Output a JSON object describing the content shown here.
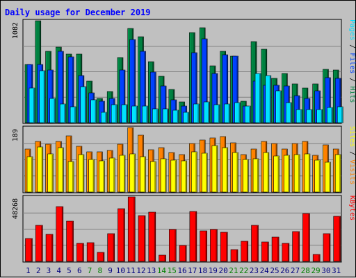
{
  "chart_data": {
    "type": "bar",
    "title": "Daily usage for December 2019",
    "categories": [
      "1",
      "2",
      "3",
      "4",
      "5",
      "6",
      "7",
      "8",
      "9",
      "10",
      "11",
      "12",
      "13",
      "14",
      "15",
      "16",
      "17",
      "18",
      "19",
      "20",
      "21",
      "22",
      "23",
      "24",
      "25",
      "26",
      "27",
      "28",
      "29",
      "30",
      "31"
    ],
    "weekend_days": [
      "7",
      "8",
      "14",
      "15",
      "21",
      "22",
      "28",
      "29"
    ],
    "panels": [
      {
        "id": "hits-files-pages",
        "max_label": "1082",
        "ymax": 1082,
        "legend": [
          "Pages",
          "Files",
          "Hits"
        ],
        "series": [
          {
            "name": "Hits",
            "color": "#008040",
            "values": [
              620,
              1082,
              760,
              800,
              730,
              730,
              440,
              260,
              330,
              690,
              1000,
              910,
              650,
              490,
              350,
              220,
              960,
              1010,
              600,
              760,
              710,
              230,
              860,
              780,
              470,
              520,
              410,
              370,
              410,
              570,
              560
            ]
          },
          {
            "name": "Files",
            "color": "#0040ff",
            "values": [
              620,
              620,
              560,
              760,
              700,
              500,
              320,
              230,
              260,
              560,
              880,
              760,
              540,
              390,
              240,
              180,
              740,
              890,
              520,
              720,
              710,
              180,
              440,
              400,
              400,
              390,
              290,
              260,
              340,
              480,
              470
            ]
          },
          {
            "name": "Pages",
            "color": "#00e0ff",
            "values": [
              370,
              550,
              260,
              200,
              170,
              380,
              240,
              110,
              190,
              190,
              180,
              180,
              150,
              150,
              130,
              110,
              200,
              220,
              190,
              200,
              210,
              180,
              520,
              500,
              340,
              210,
              140,
              140,
              140,
              160,
              170
            ]
          }
        ]
      },
      {
        "id": "visits-sites",
        "max_label": "189",
        "ymax": 189,
        "legend": [
          "Sites",
          "Visits"
        ],
        "series": [
          {
            "name": "Visits",
            "color": "#ff8000",
            "values": [
              126,
              149,
              140,
              149,
              164,
              134,
              118,
              118,
              122,
              140,
              189,
              167,
              124,
              130,
              116,
              110,
              143,
              153,
              158,
              162,
              145,
              110,
              126,
              149,
              142,
              127,
              143,
              148,
              108,
              138,
              127
            ]
          },
          {
            "name": "Sites",
            "color": "#ffff00",
            "values": [
              104,
              132,
              112,
              130,
              90,
              110,
              96,
              92,
              100,
              108,
              111,
              104,
              90,
              98,
              94,
              92,
              118,
              114,
              136,
              130,
              116,
              95,
              98,
              116,
              106,
              108,
              110,
              111,
              94,
              88,
              110
            ]
          }
        ]
      },
      {
        "id": "kbytes",
        "max_label": "48268",
        "ymax": 48268,
        "legend": [
          "KBytes"
        ],
        "series": [
          {
            "name": "KBytes",
            "color": "#ff0000",
            "values": [
              17000,
              27000,
              20500,
              41000,
              30000,
              13500,
              14000,
              7000,
              21000,
              39500,
              48268,
              34000,
              37000,
              4500,
              24000,
              12000,
              37500,
              23000,
              24000,
              22000,
              9000,
              15000,
              27000,
              14500,
              18000,
              13500,
              22500,
              36000,
              5000,
              21000,
              33500
            ]
          }
        ]
      }
    ]
  }
}
